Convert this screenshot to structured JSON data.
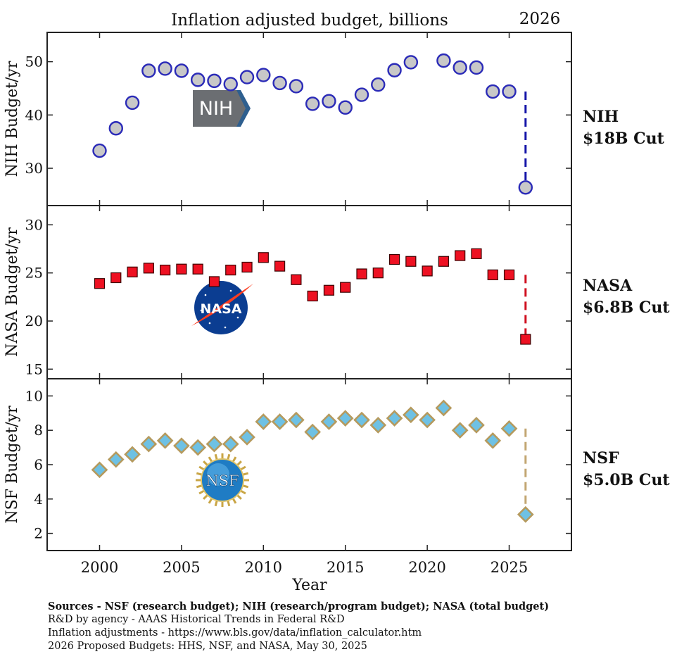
{
  "chart_data": {
    "type": "scatter",
    "title": "Inflation adjusted budget, billions",
    "corner_label": "2026",
    "xlabel": "Year",
    "xlim": [
      1996.8,
      2028.8
    ],
    "xticks": [
      2000,
      2005,
      2010,
      2015,
      2020,
      2025
    ],
    "panels": [
      {
        "agency": "NIH",
        "ylabel": "NIH Budget/yr",
        "ylim": [
          23.0,
          55.5
        ],
        "yticks": [
          30,
          40,
          50
        ],
        "marker": "circle",
        "fill": "#c8c8c8",
        "edge": "#2b2bb8",
        "cut_line_color": "#1515a8",
        "cut_label_line1": "NIH",
        "cut_label_line2": "$18B Cut",
        "logo_text": "NIH",
        "x": [
          2000,
          2001,
          2002,
          2003,
          2004,
          2005,
          2006,
          2007,
          2008,
          2009,
          2010,
          2011,
          2012,
          2013,
          2014,
          2015,
          2016,
          2017,
          2018,
          2019,
          2021,
          2022,
          2023,
          2024,
          2025
        ],
        "values": [
          33.3,
          37.5,
          42.3,
          48.3,
          48.7,
          48.3,
          46.6,
          46.4,
          45.8,
          47.1,
          47.5,
          46.0,
          45.4,
          42.1,
          42.6,
          41.4,
          43.8,
          45.7,
          48.4,
          49.9,
          50.2,
          48.9,
          48.9,
          44.4,
          44.4
        ],
        "proposed_2026": 26.4,
        "cut_line_top": 44.4
      },
      {
        "agency": "NASA",
        "ylabel": "NASA Budget/yr",
        "ylim": [
          14.0,
          32.0
        ],
        "yticks": [
          15,
          20,
          25,
          30
        ],
        "marker": "square",
        "fill": "#ee1122",
        "edge": "#3a0000",
        "cut_line_color": "#d01020",
        "cut_label_line1": "NASA",
        "cut_label_line2": "$6.8B Cut",
        "logo_text": "NASA",
        "x": [
          2000,
          2001,
          2002,
          2003,
          2004,
          2005,
          2006,
          2007,
          2008,
          2009,
          2010,
          2011,
          2012,
          2013,
          2014,
          2015,
          2016,
          2017,
          2018,
          2019,
          2020,
          2021,
          2022,
          2023,
          2024,
          2025
        ],
        "values": [
          23.9,
          24.5,
          25.1,
          25.5,
          25.3,
          25.4,
          25.4,
          24.1,
          25.3,
          25.6,
          26.6,
          25.7,
          24.3,
          22.6,
          23.2,
          23.5,
          24.9,
          25.0,
          26.4,
          26.2,
          25.2,
          26.2,
          26.8,
          27.0,
          24.8,
          24.8
        ],
        "proposed_2026": 18.1,
        "cut_line_top": 24.8
      },
      {
        "agency": "NSF",
        "ylabel": "NSF Budget/yr",
        "ylim": [
          1.0,
          11.0
        ],
        "yticks": [
          2,
          4,
          6,
          8,
          10
        ],
        "marker": "diamond",
        "fill": "#6ec1e4",
        "edge": "#b59a5e",
        "cut_line_color": "#c2a672",
        "cut_label_line1": "NSF",
        "cut_label_line2": "$5.0B Cut",
        "logo_text": "NSF",
        "x": [
          2000,
          2001,
          2002,
          2003,
          2004,
          2005,
          2006,
          2007,
          2008,
          2009,
          2010,
          2011,
          2012,
          2013,
          2014,
          2015,
          2016,
          2017,
          2018,
          2019,
          2020,
          2021,
          2022,
          2023,
          2024,
          2025
        ],
        "values": [
          5.7,
          6.3,
          6.6,
          7.2,
          7.4,
          7.1,
          7.0,
          7.2,
          7.2,
          7.6,
          8.5,
          8.5,
          8.6,
          7.9,
          8.5,
          8.7,
          8.6,
          8.3,
          8.7,
          8.9,
          8.6,
          9.3,
          8.0,
          8.3,
          7.4,
          8.1
        ],
        "proposed_2026": 3.1,
        "cut_line_top": 8.1
      }
    ]
  },
  "sources": {
    "line1": "Sources - NSF (research budget); NIH (research/program budget); NASA (total budget)",
    "line2": "R&D by agency - AAAS Historical Trends in Federal R&D",
    "line3": "Inflation adjustments - https://www.bls.gov/data/inflation_calculator.htm",
    "line4": "2026 Proposed Budgets: HHS, NSF, and NASA, May 30, 2025"
  }
}
